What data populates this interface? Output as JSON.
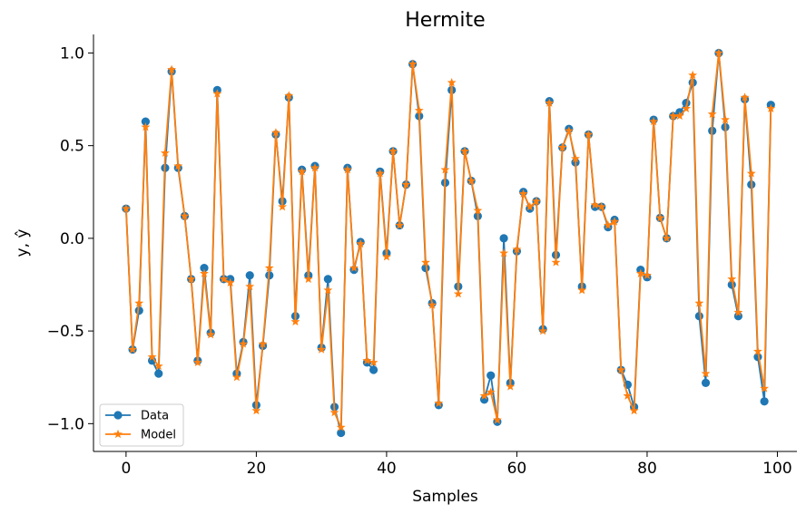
{
  "chart_data": {
    "type": "line",
    "title": "Hermite",
    "xlabel": "Samples",
    "ylabel": "y, ŷ",
    "xlim": [
      -5,
      103
    ],
    "ylim": [
      -1.15,
      1.1
    ],
    "xticks": [
      0,
      20,
      40,
      60,
      80,
      100
    ],
    "xtick_labels": [
      "0",
      "20",
      "40",
      "60",
      "80",
      "100"
    ],
    "yticks": [
      1.0,
      0.5,
      0.0,
      -0.5,
      -1.0
    ],
    "ytick_labels": [
      "1.0",
      "0.5",
      "0.0",
      "−0.5",
      "−1.0"
    ],
    "grid": false,
    "legend_position": "lower-left",
    "series": [
      {
        "name": "Data",
        "color": "#1f77b4",
        "marker": "circle",
        "values": [
          0.16,
          -0.6,
          -0.39,
          0.63,
          -0.66,
          -0.73,
          0.38,
          0.9,
          0.38,
          0.12,
          -0.22,
          -0.66,
          -0.16,
          -0.51,
          0.8,
          -0.22,
          -0.22,
          -0.73,
          -0.56,
          -0.2,
          -0.9,
          -0.58,
          -0.2,
          0.56,
          0.2,
          0.76,
          -0.42,
          0.37,
          -0.2,
          0.39,
          -0.59,
          -0.22,
          -0.91,
          -1.05,
          0.38,
          -0.17,
          -0.02,
          -0.67,
          -0.71,
          0.36,
          -0.08,
          0.47,
          0.07,
          0.29,
          0.94,
          0.66,
          -0.16,
          -0.35,
          -0.9,
          0.3,
          0.8,
          -0.26,
          0.47,
          0.31,
          0.12,
          -0.87,
          -0.74,
          -0.99,
          0.0,
          -0.78,
          -0.07,
          0.25,
          0.16,
          0.2,
          -0.49,
          0.74,
          -0.09,
          0.49,
          0.59,
          0.41,
          -0.26,
          0.56,
          0.17,
          0.17,
          0.06,
          0.1,
          -0.71,
          -0.79,
          -0.91,
          -0.17,
          -0.21,
          0.64,
          0.11,
          0.0,
          0.66,
          0.68,
          0.73,
          0.84,
          -0.42,
          -0.78,
          0.58,
          1.0,
          0.6,
          -0.25,
          -0.42,
          0.75,
          0.29,
          -0.64,
          -0.88,
          0.72
        ]
      },
      {
        "name": "Model",
        "color": "#ff7f0e",
        "marker": "star",
        "values": [
          0.16,
          -0.6,
          -0.35,
          0.6,
          -0.64,
          -0.69,
          0.46,
          0.91,
          0.39,
          0.12,
          -0.22,
          -0.67,
          -0.19,
          -0.52,
          0.78,
          -0.22,
          -0.24,
          -0.75,
          -0.57,
          -0.26,
          -0.93,
          -0.57,
          -0.16,
          0.57,
          0.17,
          0.77,
          -0.45,
          0.36,
          -0.22,
          0.38,
          -0.6,
          -0.28,
          -0.94,
          -1.02,
          0.37,
          -0.16,
          -0.03,
          -0.66,
          -0.67,
          0.35,
          -0.1,
          0.47,
          0.07,
          0.29,
          0.94,
          0.69,
          -0.13,
          -0.36,
          -0.89,
          0.37,
          0.84,
          -0.3,
          0.47,
          0.31,
          0.15,
          -0.85,
          -0.83,
          -0.98,
          -0.08,
          -0.8,
          -0.06,
          0.24,
          0.17,
          0.2,
          -0.5,
          0.73,
          -0.13,
          0.49,
          0.58,
          0.43,
          -0.28,
          0.56,
          0.18,
          0.17,
          0.07,
          0.09,
          -0.71,
          -0.85,
          -0.93,
          -0.19,
          -0.2,
          0.63,
          0.11,
          0.0,
          0.66,
          0.66,
          0.7,
          0.88,
          -0.35,
          -0.73,
          0.67,
          1.0,
          0.64,
          -0.22,
          -0.4,
          0.76,
          0.35,
          -0.61,
          -0.81,
          0.7
        ]
      }
    ]
  }
}
